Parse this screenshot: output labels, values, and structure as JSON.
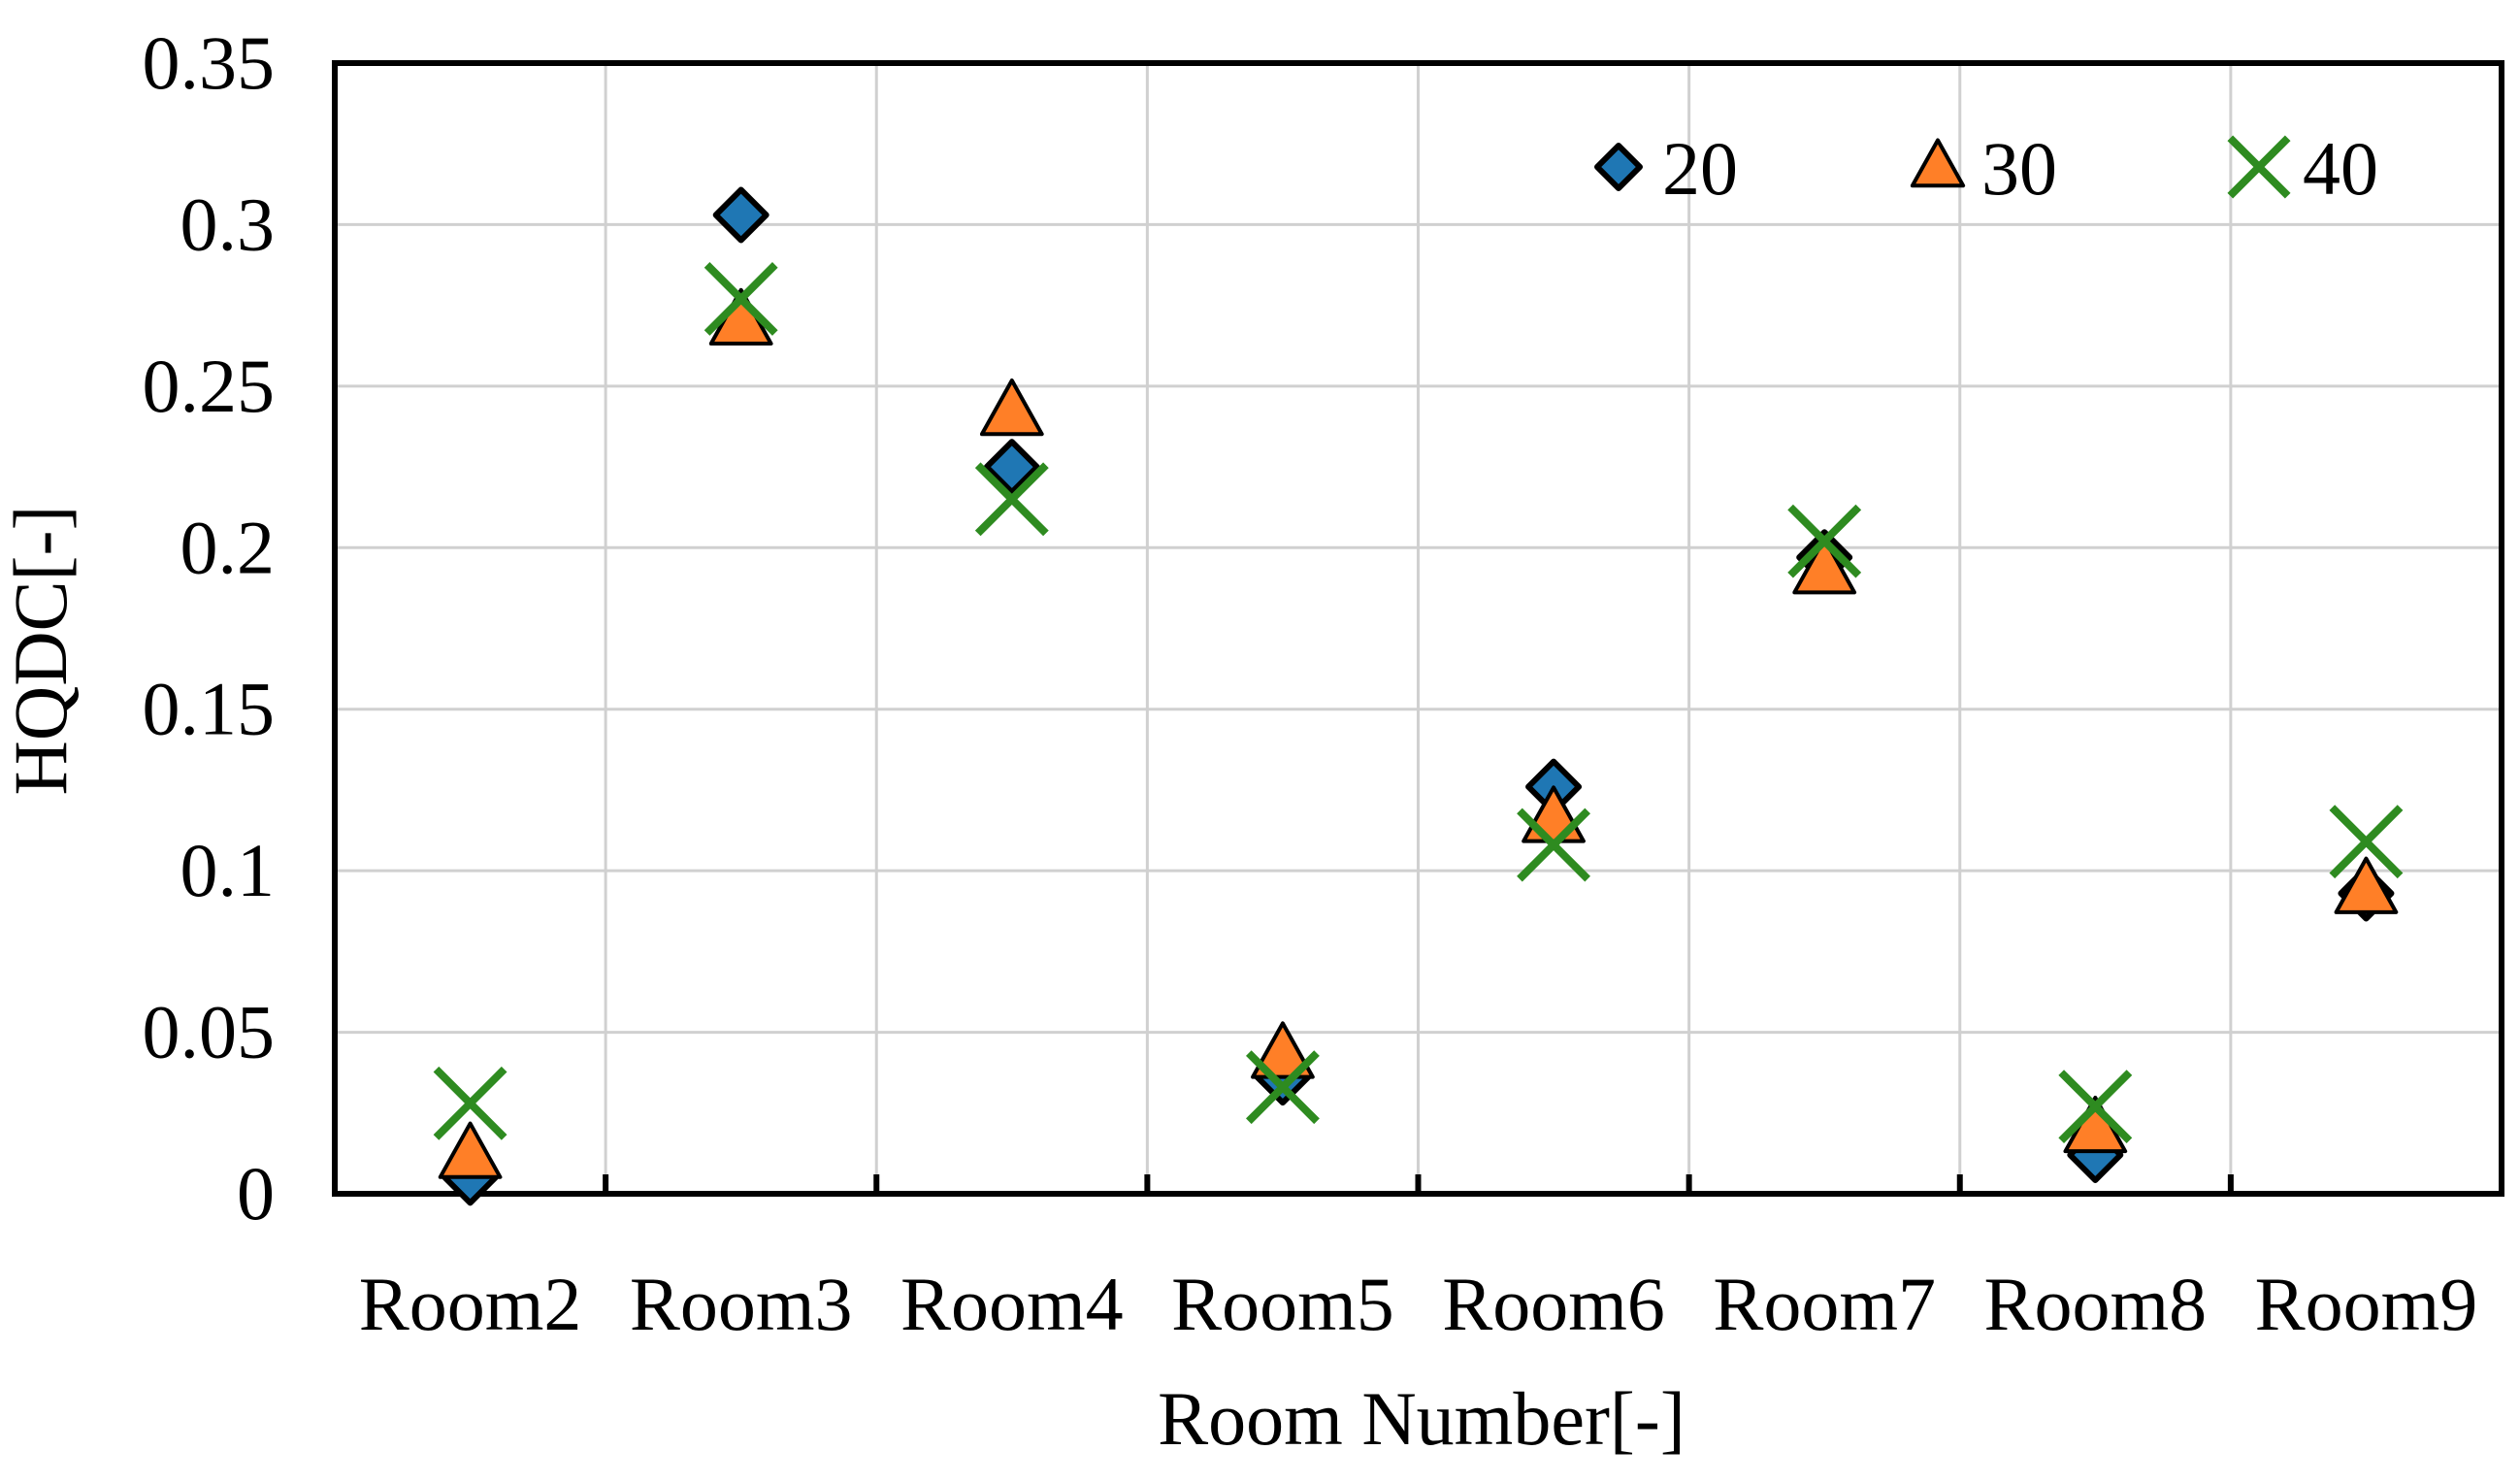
{
  "chart_data": {
    "type": "scatter",
    "title": "",
    "xlabel": "Room Number[-]",
    "ylabel": "HQDC[-]",
    "categories": [
      "Room2",
      "Room3",
      "Room4",
      "Room5",
      "Room6",
      "Room7",
      "Room8",
      "Room9"
    ],
    "ylim": [
      0,
      0.35
    ],
    "yticks": [
      0,
      0.05,
      0.1,
      0.15,
      0.2,
      0.25,
      0.3,
      0.35
    ],
    "ytick_labels": [
      "0",
      "0.05",
      "0.1",
      "0.15",
      "0.2",
      "0.25",
      "0.3",
      "0.35"
    ],
    "grid": true,
    "legend_position": "top-right",
    "series": [
      {
        "name": "20",
        "marker": "diamond",
        "color": "#1f77b4",
        "values": [
          0.005,
          0.303,
          0.225,
          0.036,
          0.126,
          0.197,
          0.012,
          0.093
        ]
      },
      {
        "name": "30",
        "marker": "triangle",
        "color": "#ff7f27",
        "values": [
          0.012,
          0.27,
          0.242,
          0.043,
          0.116,
          0.193,
          0.02,
          0.094
        ]
      },
      {
        "name": "40",
        "marker": "x",
        "color": "#2e8b20",
        "values": [
          0.028,
          0.277,
          0.215,
          0.033,
          0.108,
          0.202,
          0.027,
          0.109
        ]
      }
    ]
  }
}
